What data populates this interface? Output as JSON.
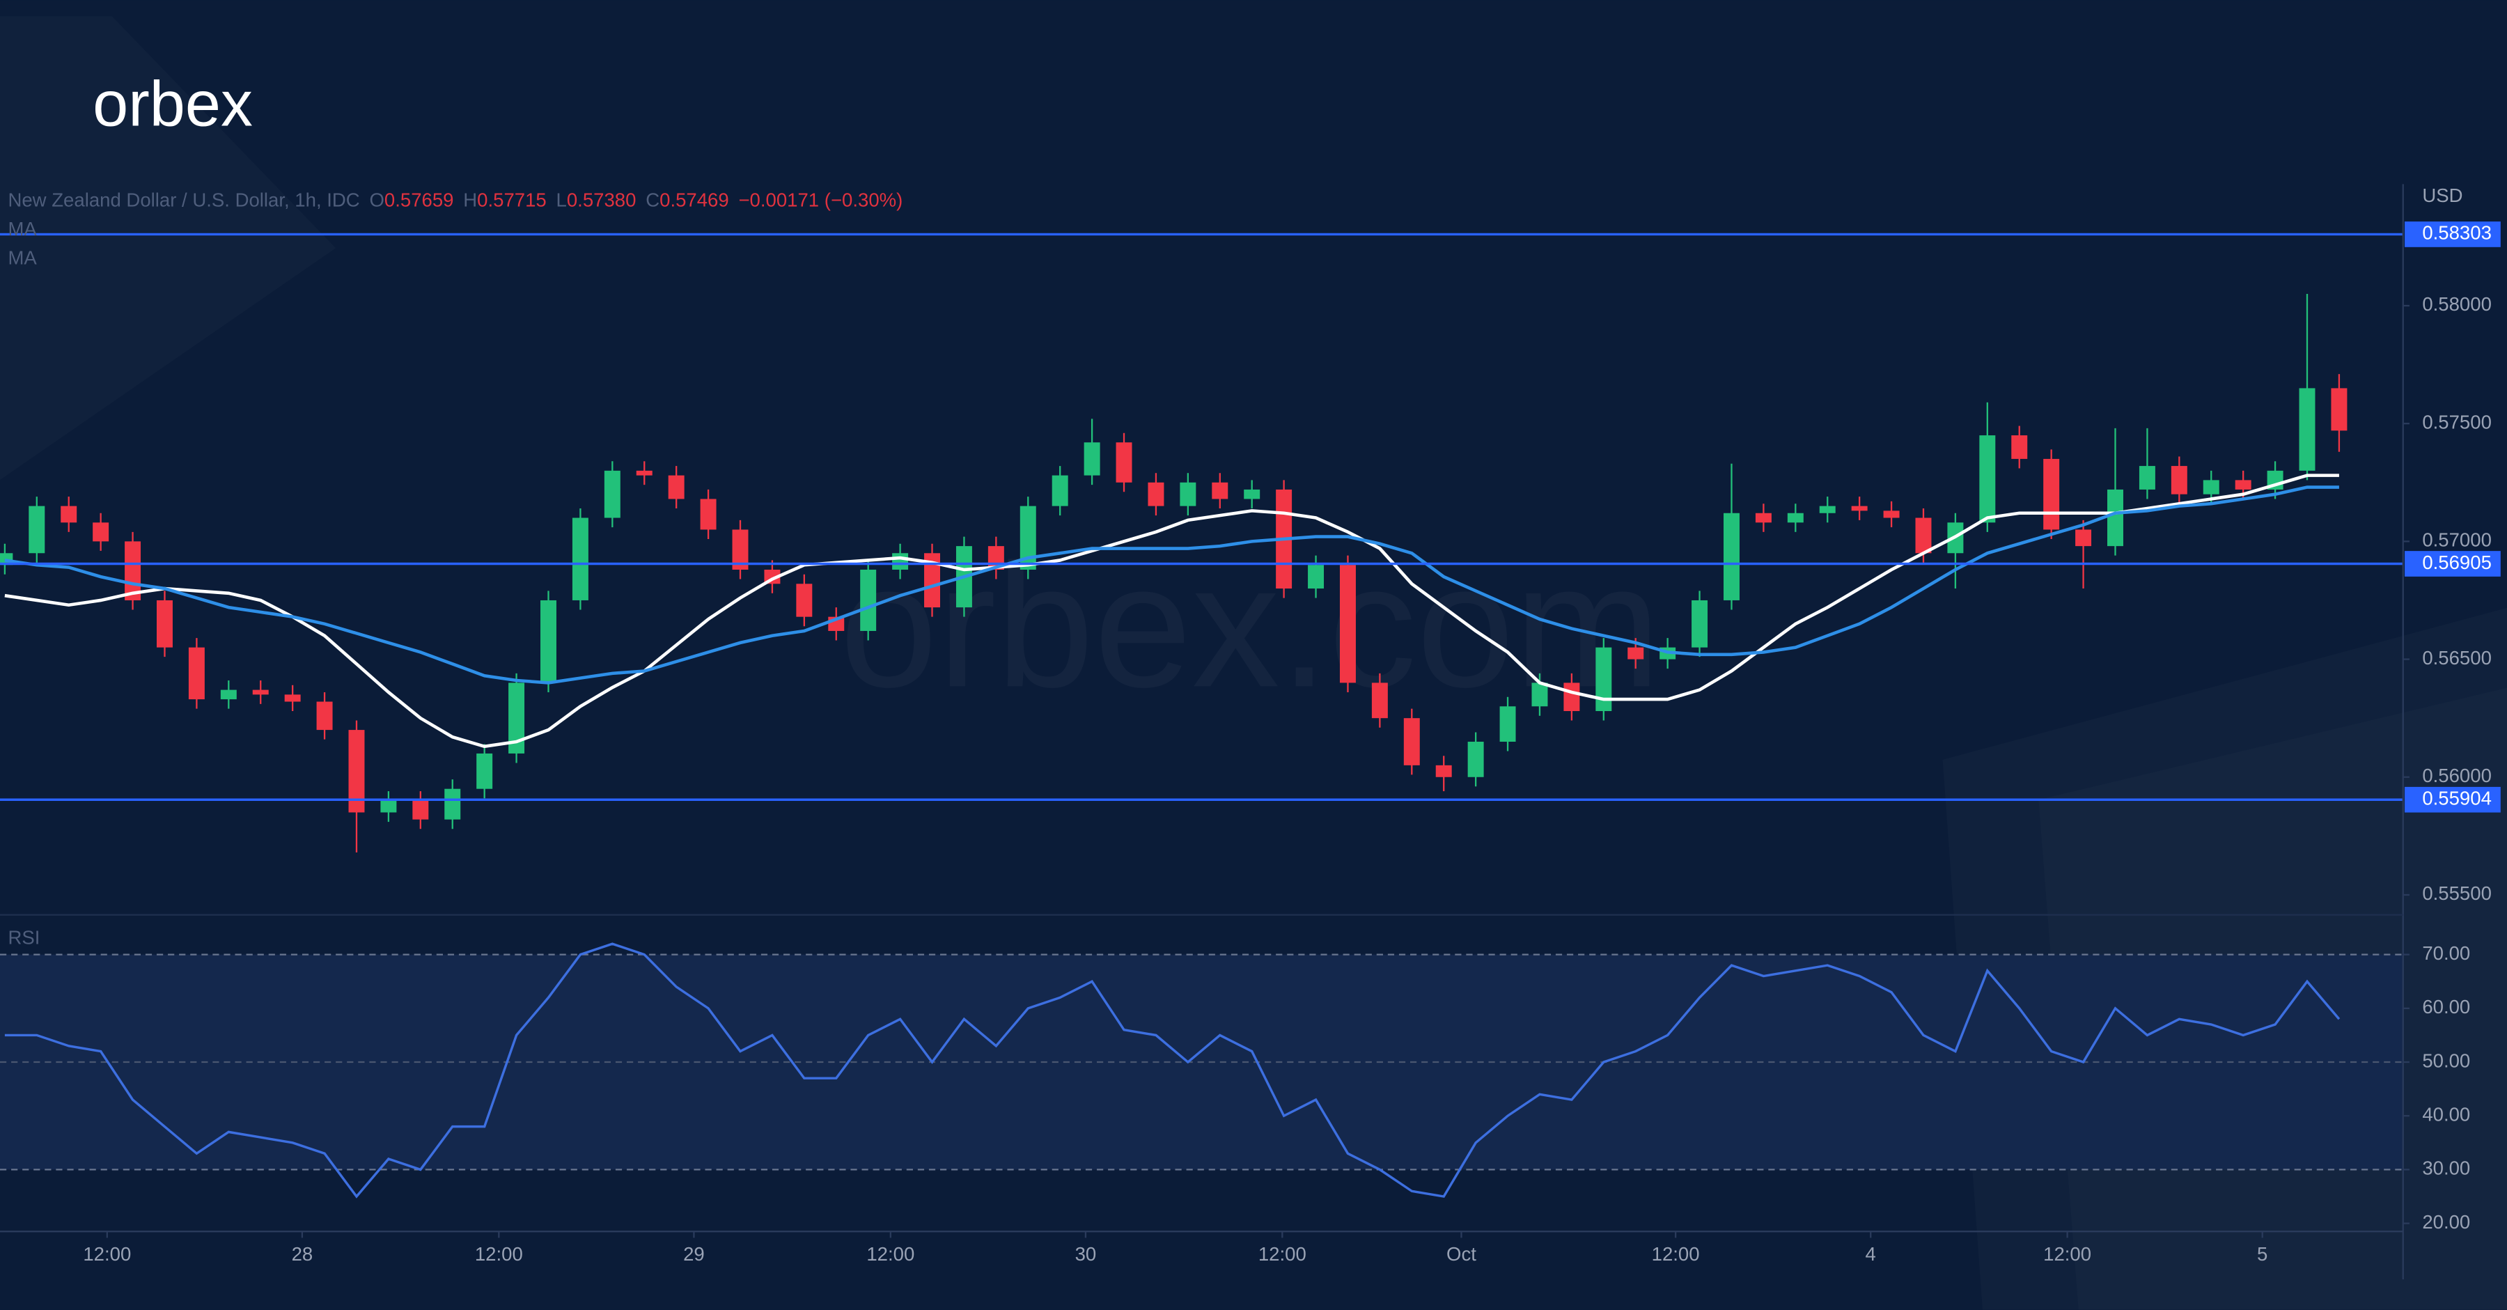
{
  "logo": "orbex",
  "watermark": "orbex.com",
  "chart_data": [
    {
      "type": "candlestick",
      "header": {
        "symbol": "New Zealand Dollar / U.S. Dollar, 1h, IDC",
        "o_label": "O",
        "open": "0.57659",
        "h_label": "H",
        "high": "0.57715",
        "l_label": "L",
        "low": "0.57380",
        "c_label": "C",
        "close": "0.57469",
        "change": "−0.00171 (−0.30%)"
      },
      "axis_unit": "USD",
      "up_color": "#22c17a",
      "down_color": "#f23645",
      "x": [
        0,
        2,
        4,
        6,
        8,
        10,
        12,
        14,
        16,
        18,
        20,
        22,
        24,
        26,
        28,
        30,
        32,
        34,
        36,
        38,
        40,
        42,
        44,
        46,
        48,
        50,
        52,
        54,
        56,
        58,
        60,
        62,
        64,
        66,
        68,
        70,
        72,
        74,
        76,
        78,
        80,
        82,
        84,
        86,
        88,
        90,
        92,
        94,
        96,
        98,
        100,
        102,
        104,
        106,
        108,
        110,
        112,
        114,
        116,
        118,
        120,
        122,
        124,
        126,
        128,
        130,
        132,
        134,
        136,
        138,
        140,
        142,
        144,
        146
      ],
      "open": [
        0.569,
        0.5695,
        0.5715,
        0.5708,
        0.57,
        0.5675,
        0.5655,
        0.5633,
        0.5637,
        0.5635,
        0.5632,
        0.562,
        0.5585,
        0.559,
        0.5582,
        0.5595,
        0.561,
        0.564,
        0.5675,
        0.571,
        0.573,
        0.5728,
        0.5718,
        0.5705,
        0.5688,
        0.5682,
        0.5668,
        0.5662,
        0.5688,
        0.5695,
        0.5672,
        0.5698,
        0.5688,
        0.5715,
        0.5728,
        0.5742,
        0.5725,
        0.5715,
        0.5725,
        0.5718,
        0.5722,
        0.568,
        0.569,
        0.564,
        0.5625,
        0.5605,
        0.56,
        0.5615,
        0.563,
        0.564,
        0.5628,
        0.5655,
        0.565,
        0.5655,
        0.5675,
        0.5712,
        0.5708,
        0.5712,
        0.5715,
        0.5713,
        0.571,
        0.5695,
        0.5708,
        0.5745,
        0.5735,
        0.5705,
        0.5698,
        0.5722,
        0.5732,
        0.572,
        0.5726,
        0.5722,
        0.573,
        0.5765
      ],
      "high": [
        0.5699,
        0.5719,
        0.5719,
        0.5712,
        0.5704,
        0.5679,
        0.5659,
        0.5641,
        0.5641,
        0.5639,
        0.5636,
        0.5624,
        0.5594,
        0.5594,
        0.5599,
        0.5614,
        0.5644,
        0.5679,
        0.5714,
        0.5734,
        0.5734,
        0.5732,
        0.5722,
        0.5709,
        0.5692,
        0.5686,
        0.5672,
        0.5692,
        0.5699,
        0.5699,
        0.5702,
        0.5702,
        0.5719,
        0.5732,
        0.5752,
        0.5746,
        0.5729,
        0.5729,
        0.5729,
        0.5726,
        0.5726,
        0.5694,
        0.5694,
        0.5644,
        0.5629,
        0.5609,
        0.5619,
        0.5634,
        0.5644,
        0.5644,
        0.5659,
        0.5659,
        0.5659,
        0.5679,
        0.5733,
        0.5716,
        0.5716,
        0.5719,
        0.5719,
        0.5717,
        0.5714,
        0.5712,
        0.5759,
        0.5749,
        0.5739,
        0.5709,
        0.5748,
        0.5748,
        0.5736,
        0.573,
        0.573,
        0.5734,
        0.5805,
        0.5771
      ],
      "low": [
        0.5686,
        0.5691,
        0.5704,
        0.5696,
        0.5671,
        0.5651,
        0.5629,
        0.5629,
        0.5631,
        0.5628,
        0.5616,
        0.5568,
        0.5581,
        0.5578,
        0.5578,
        0.5591,
        0.5606,
        0.5636,
        0.5671,
        0.5706,
        0.5724,
        0.5714,
        0.5701,
        0.5684,
        0.5678,
        0.5664,
        0.5658,
        0.5658,
        0.5684,
        0.5668,
        0.5668,
        0.5684,
        0.5684,
        0.5711,
        0.5724,
        0.5721,
        0.5711,
        0.5711,
        0.5714,
        0.5714,
        0.5676,
        0.5676,
        0.5636,
        0.5621,
        0.5601,
        0.5594,
        0.5596,
        0.5611,
        0.5626,
        0.5624,
        0.5624,
        0.5646,
        0.5646,
        0.5651,
        0.5671,
        0.5704,
        0.5704,
        0.5708,
        0.5709,
        0.5706,
        0.5691,
        0.568,
        0.5704,
        0.5731,
        0.5701,
        0.568,
        0.5694,
        0.5718,
        0.5716,
        0.5716,
        0.5718,
        0.5718,
        0.5726,
        0.5738
      ],
      "close": [
        0.5695,
        0.5715,
        0.5708,
        0.57,
        0.5675,
        0.5655,
        0.5633,
        0.5637,
        0.5635,
        0.5632,
        0.562,
        0.5585,
        0.559,
        0.5582,
        0.5595,
        0.561,
        0.564,
        0.5675,
        0.571,
        0.573,
        0.5728,
        0.5718,
        0.5705,
        0.5688,
        0.5682,
        0.5668,
        0.5662,
        0.5688,
        0.5695,
        0.5672,
        0.5698,
        0.5688,
        0.5715,
        0.5728,
        0.5742,
        0.5725,
        0.5715,
        0.5725,
        0.5718,
        0.5722,
        0.568,
        0.569,
        0.564,
        0.5625,
        0.5605,
        0.56,
        0.5615,
        0.563,
        0.564,
        0.5628,
        0.5655,
        0.565,
        0.5655,
        0.5675,
        0.5712,
        0.5708,
        0.5712,
        0.5715,
        0.5713,
        0.571,
        0.5695,
        0.5708,
        0.5745,
        0.5735,
        0.5705,
        0.5698,
        0.5722,
        0.5732,
        0.572,
        0.5726,
        0.5722,
        0.573,
        0.5765,
        0.5747
      ],
      "ma_series": [
        {
          "name": "MA",
          "color": "#ffffff",
          "values": [
            0.5677,
            0.5675,
            0.5673,
            0.5675,
            0.5678,
            0.568,
            0.5679,
            0.5678,
            0.5675,
            0.5668,
            0.566,
            0.5648,
            0.5636,
            0.5625,
            0.5617,
            0.5613,
            0.5615,
            0.562,
            0.563,
            0.5638,
            0.5645,
            0.5656,
            0.5667,
            0.5676,
            0.5684,
            0.569,
            0.5691,
            0.5692,
            0.5693,
            0.5691,
            0.5688,
            0.5689,
            0.569,
            0.5692,
            0.5696,
            0.57,
            0.5704,
            0.5709,
            0.5711,
            0.5713,
            0.5712,
            0.571,
            0.5704,
            0.5697,
            0.5682,
            0.5672,
            0.5662,
            0.5653,
            0.564,
            0.5636,
            0.5633,
            0.5633,
            0.5633,
            0.5637,
            0.5645,
            0.5655,
            0.5665,
            0.5672,
            0.568,
            0.5688,
            0.5695,
            0.5702,
            0.571,
            0.5712,
            0.5712,
            0.5712,
            0.5712,
            0.5714,
            0.5716,
            0.5718,
            0.572,
            0.5724,
            0.5728,
            0.5728
          ]
        },
        {
          "name": "MA",
          "color": "#2e8fe8",
          "values": [
            0.5692,
            0.569,
            0.5689,
            0.5685,
            0.5682,
            0.568,
            0.5676,
            0.5672,
            0.567,
            0.5668,
            0.5665,
            0.5661,
            0.5657,
            0.5653,
            0.5648,
            0.5643,
            0.5641,
            0.564,
            0.5642,
            0.5644,
            0.5645,
            0.5649,
            0.5653,
            0.5657,
            0.566,
            0.5662,
            0.5667,
            0.5672,
            0.5677,
            0.5681,
            0.5685,
            0.5689,
            0.5693,
            0.5695,
            0.5697,
            0.5697,
            0.5697,
            0.5697,
            0.5698,
            0.57,
            0.5701,
            0.5702,
            0.5702,
            0.5699,
            0.5695,
            0.5685,
            0.5679,
            0.5673,
            0.5667,
            0.5663,
            0.566,
            0.5657,
            0.5653,
            0.5652,
            0.5652,
            0.5653,
            0.5655,
            0.566,
            0.5665,
            0.5672,
            0.568,
            0.5688,
            0.5695,
            0.5699,
            0.5703,
            0.5707,
            0.5712,
            0.5713,
            0.5715,
            0.5716,
            0.5718,
            0.572,
            0.5723,
            0.5723
          ]
        }
      ],
      "levels": [
        0.58303,
        0.56905,
        0.55904
      ],
      "level_color": "#2962ff",
      "xlim": [
        -0.3,
        150
      ],
      "ylim": [
        0.55429,
        0.58516
      ],
      "xticks": [
        {
          "value": 6.4,
          "label": "12:00"
        },
        {
          "value": 18.6,
          "label": "28"
        },
        {
          "value": 30.9,
          "label": "12:00"
        },
        {
          "value": 43.1,
          "label": "29"
        },
        {
          "value": 55.4,
          "label": "12:00"
        },
        {
          "value": 67.6,
          "label": "30"
        },
        {
          "value": 79.9,
          "label": "12:00"
        },
        {
          "value": 91.1,
          "label": "Oct"
        },
        {
          "value": 104.5,
          "label": "12:00"
        },
        {
          "value": 116.7,
          "label": "4"
        },
        {
          "value": 129.0,
          "label": "12:00"
        },
        {
          "value": 141.2,
          "label": "5"
        }
      ],
      "yticks": [
        {
          "value": 0.555,
          "label": "0.55500"
        },
        {
          "value": 0.56,
          "label": "0.56000"
        },
        {
          "value": 0.565,
          "label": "0.56500"
        },
        {
          "value": 0.57,
          "label": "0.57000"
        },
        {
          "value": 0.575,
          "label": "0.57500"
        },
        {
          "value": 0.58,
          "label": "0.58000"
        }
      ],
      "grid": false
    },
    {
      "type": "line",
      "title": "RSI",
      "color": "#3d6fe0",
      "values": [
        55,
        55,
        53,
        52,
        43,
        38,
        33,
        37,
        36,
        35,
        33,
        25,
        32,
        30,
        38,
        38,
        55,
        62,
        70,
        72,
        70,
        64,
        60,
        52,
        55,
        47,
        47,
        55,
        58,
        50,
        58,
        53,
        60,
        62,
        65,
        56,
        55,
        50,
        55,
        52,
        40,
        43,
        33,
        30,
        26,
        25,
        35,
        40,
        44,
        43,
        50,
        52,
        55,
        62,
        68,
        66,
        67,
        68,
        66,
        63,
        55,
        52,
        67,
        60,
        52,
        50,
        60,
        55,
        58,
        57,
        55,
        57,
        65,
        58
      ],
      "band": [
        30,
        70
      ],
      "midline": 50,
      "band_color": "#14284d",
      "ylim": [
        18.5,
        76.5
      ],
      "yticks": [
        {
          "value": 20,
          "label": "20.00"
        },
        {
          "value": 30,
          "label": "30.00"
        },
        {
          "value": 40,
          "label": "40.00"
        },
        {
          "value": 50,
          "label": "50.00"
        },
        {
          "value": 60,
          "label": "60.00"
        },
        {
          "value": 70,
          "label": "70.00"
        }
      ]
    }
  ]
}
